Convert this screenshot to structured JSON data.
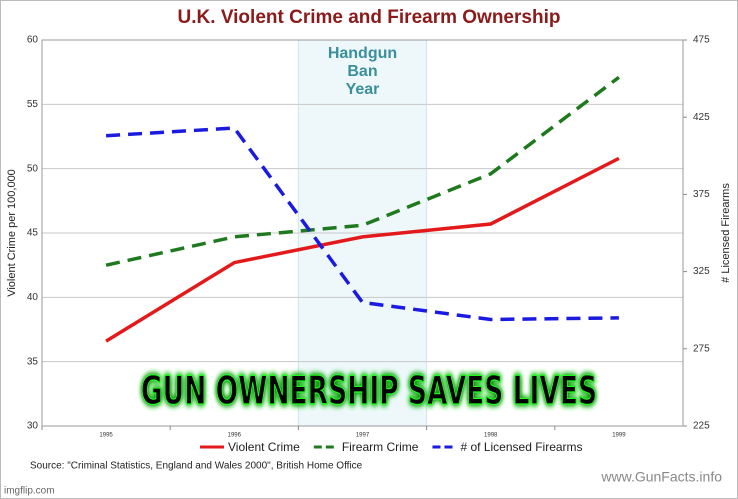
{
  "chart_data": {
    "type": "line",
    "title": "U.K. Violent Crime and Firearm Ownership",
    "categories": [
      "1995",
      "1996",
      "1997",
      "1998",
      "1999"
    ],
    "ylabel": "Violent Crime per 100,000",
    "y2label": "# Licensed Firearms",
    "ylim": [
      30,
      60
    ],
    "yticks": [
      30,
      35,
      40,
      45,
      50,
      55,
      60
    ],
    "y2lim": [
      225,
      475
    ],
    "y2ticks": [
      225,
      275,
      325,
      375,
      425,
      475
    ],
    "grid": true,
    "legend": "bottom",
    "annotation": [
      "Handgun",
      "Ban",
      "Year"
    ],
    "series": [
      {
        "name": "Violent Crime",
        "color": "#e31a1c",
        "dashed": false,
        "values": [
          36.6,
          42.7,
          44.7,
          45.7,
          50.8
        ]
      },
      {
        "name": "Firearm Crime",
        "color": "#1f7a1f",
        "dashed": true,
        "values": [
          42.5,
          44.7,
          45.6,
          49.6,
          57.1
        ]
      },
      {
        "name": "# of Licensed Firearms",
        "color": "#1a1ae0",
        "dashed": true,
        "axis": "y2",
        "values": [
          413,
          418,
          305,
          294,
          295
        ]
      }
    ]
  },
  "banner": "GUN OWNERSHIP SAVES LIVES",
  "source": "Source: \"Criminal  Statistics, England  and Wales 2000\", British Home Office",
  "credit": "www.GunFacts.info",
  "watermark": "imgflip.com"
}
